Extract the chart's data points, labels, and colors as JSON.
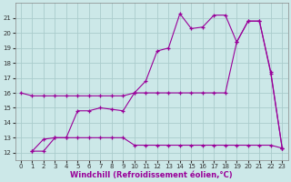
{
  "xlabel": "Windchill (Refroidissement éolien,°C)",
  "background_color": "#cce8e8",
  "grid_color": "#aacccc",
  "line_color": "#990099",
  "xlim": [
    -0.5,
    23.5
  ],
  "ylim": [
    11.5,
    22.0
  ],
  "xticks": [
    0,
    1,
    2,
    3,
    4,
    5,
    6,
    7,
    8,
    9,
    10,
    11,
    12,
    13,
    14,
    15,
    16,
    17,
    18,
    19,
    20,
    21,
    22,
    23
  ],
  "yticks": [
    12,
    13,
    14,
    15,
    16,
    17,
    18,
    19,
    20,
    21
  ],
  "line1_x": [
    0,
    1,
    2,
    3,
    4,
    5,
    6,
    7,
    8,
    9,
    10,
    11,
    12,
    13,
    14,
    15,
    16,
    17,
    18,
    19,
    20,
    21,
    22,
    23
  ],
  "line1_y": [
    16.0,
    15.8,
    15.8,
    15.8,
    15.8,
    15.8,
    15.8,
    15.8,
    15.8,
    15.8,
    16.0,
    16.0,
    16.0,
    16.0,
    16.0,
    16.0,
    16.0,
    16.0,
    16.0,
    19.4,
    20.8,
    20.8,
    17.3,
    12.3
  ],
  "line2_x": [
    1,
    2,
    3,
    4,
    5,
    6,
    7,
    8,
    9,
    10,
    11,
    12,
    13,
    14,
    15,
    16,
    17,
    18,
    19,
    20,
    21,
    22,
    23
  ],
  "line2_y": [
    12.1,
    12.9,
    13.0,
    13.0,
    14.8,
    14.8,
    15.0,
    14.9,
    14.8,
    16.0,
    16.8,
    18.8,
    19.0,
    21.3,
    20.3,
    20.4,
    21.2,
    21.2,
    19.4,
    20.8,
    20.8,
    17.4,
    12.3
  ],
  "line3_x": [
    1,
    2,
    3,
    4,
    5,
    6,
    7,
    8,
    9,
    10,
    11,
    12,
    13,
    14,
    15,
    16,
    17,
    18,
    19,
    20,
    21,
    22,
    23
  ],
  "line3_y": [
    12.1,
    12.1,
    13.0,
    13.0,
    13.0,
    13.0,
    13.0,
    13.0,
    13.0,
    12.5,
    12.5,
    12.5,
    12.5,
    12.5,
    12.5,
    12.5,
    12.5,
    12.5,
    12.5,
    12.5,
    12.5,
    12.5,
    12.3
  ],
  "xlabel_color": "#990099",
  "tick_color": "#333333",
  "xlabel_fontsize": 6.0,
  "tick_fontsize": 5.0
}
